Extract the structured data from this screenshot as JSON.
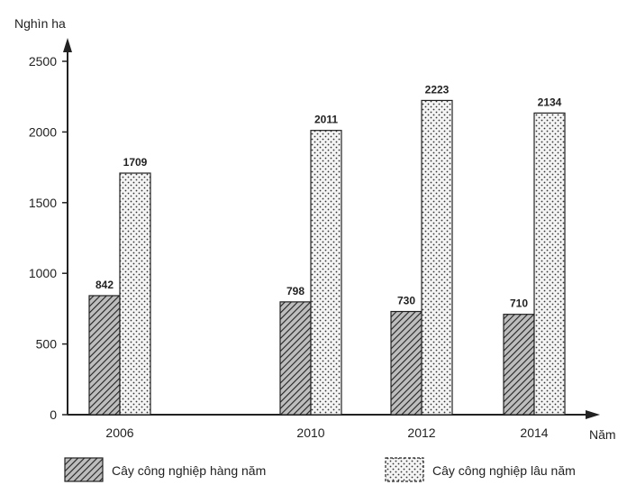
{
  "chart_data": {
    "type": "bar",
    "title": "",
    "ylabel": "Nghìn ha",
    "xlabel": "Năm",
    "ylim": [
      0,
      2500
    ],
    "yticks": [
      0,
      500,
      1000,
      1500,
      2000,
      2500
    ],
    "categories": [
      "2006",
      "2010",
      "2012",
      "2014"
    ],
    "series": [
      {
        "name": "Cây công nghiệp hàng năm",
        "pattern": "diagonal-hatch",
        "values": [
          842,
          798,
          730,
          710
        ]
      },
      {
        "name": "Cây công nghiệp lâu năm",
        "pattern": "dotted",
        "values": [
          1709,
          2011,
          2223,
          2134
        ]
      }
    ],
    "legend_position": "bottom",
    "colors": {
      "ink": "#222222",
      "hatch_fill": "#bdbdbd",
      "dot_fill": "#f4f4f4"
    }
  }
}
